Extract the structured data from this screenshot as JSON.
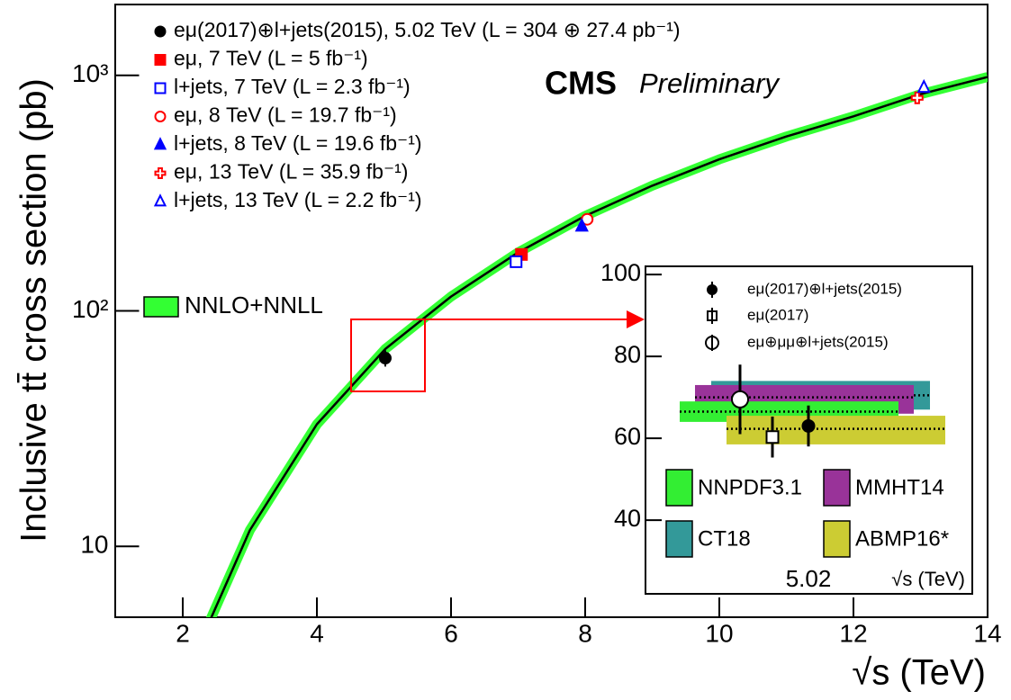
{
  "chart_data": [
    {
      "type": "scatter",
      "ylabel": "Inclusive tt̄ cross section (pb)",
      "xlabel": "√s (TeV)",
      "annotations": [
        "CMS",
        "Preliminary"
      ],
      "xlim": [
        1,
        14
      ],
      "ylim": [
        5,
        2000
      ],
      "log_y": true,
      "xticks": [
        2,
        4,
        6,
        8,
        10,
        12,
        14
      ],
      "yticks": [
        10,
        {
          "value": 100,
          "label": "10²"
        },
        {
          "value": 1000,
          "label": "10³"
        }
      ],
      "series": [
        {
          "name": "eμ(2017)⊕l+jets(2015), 5.02 TeV (L = 304 ⊕ 27.4 pb⁻¹)",
          "marker": "circle",
          "color": "#000000",
          "x": [
            5.02
          ],
          "values": [
            63.0
          ],
          "yerr": [
            5.0
          ]
        },
        {
          "name": "eμ, 7 TeV (L = 5 fb⁻¹)",
          "marker": "square",
          "color": "#ff0000",
          "x": [
            7.05
          ],
          "values": [
            173.6
          ]
        },
        {
          "name": "l+jets, 7 TeV (L = 2.3 fb⁻¹)",
          "marker": "open-square",
          "color": "#0000ff",
          "x": [
            6.97
          ],
          "values": [
            161.7
          ]
        },
        {
          "name": "eμ, 8 TeV (L = 19.7 fb⁻¹)",
          "marker": "open-circle",
          "color": "#ff0000",
          "x": [
            8.03
          ],
          "values": [
            244.9
          ]
        },
        {
          "name": "l+jets, 8 TeV (L = 19.6 fb⁻¹)",
          "marker": "triangle",
          "color": "#0000ff",
          "x": [
            7.95
          ],
          "values": [
            228.5
          ]
        },
        {
          "name": "eμ, 13 TeV (L = 35.9 fb⁻¹)",
          "marker": "open-cross",
          "color": "#ff0000",
          "x": [
            12.95
          ],
          "values": [
            803
          ]
        },
        {
          "name": "l+jets, 13 TeV (L = 2.2 fb⁻¹)",
          "marker": "open-triangle",
          "color": "#0000ff",
          "x": [
            13.05
          ],
          "values": [
            888
          ]
        }
      ],
      "theory": {
        "name": "NNLO+NNLL",
        "color": "#33ff33",
        "line_color": "#000000",
        "x": [
          2.4,
          3,
          4,
          5.02,
          6,
          7,
          8,
          9,
          10,
          11,
          12,
          13,
          14
        ],
        "values": [
          4.8,
          11.7,
          33,
          68.9,
          115,
          177,
          253,
          340,
          440,
          550,
          670,
          832,
          984
        ]
      }
    },
    {
      "type": "scatter",
      "xlabel": "√s (TeV)",
      "categories": [
        "5.02"
      ],
      "ylim": [
        22,
        102
      ],
      "yticks": [
        40,
        60,
        80,
        100
      ],
      "series": [
        {
          "name": "eμ(2017)⊕l+jets(2015)",
          "marker": "circle",
          "color": "#000000",
          "values": [
            63.0
          ],
          "yerr": [
            5.0
          ]
        },
        {
          "name": "eμ(2017)",
          "marker": "open-square",
          "color": "#000000",
          "values": [
            60.3
          ],
          "yerr": [
            5.0
          ]
        },
        {
          "name": "eμ⊕μμ⊕l+jets(2015)",
          "marker": "open-circle",
          "color": "#000000",
          "values": [
            69.5
          ],
          "yerr": [
            8.5
          ]
        }
      ],
      "bands": [
        {
          "name": "NNPDF3.1",
          "color": "#33ee33",
          "value": 66.5,
          "low": 64,
          "high": 69
        },
        {
          "name": "MMHT14",
          "color": "#993399",
          "value": 70,
          "low": 66,
          "high": 73
        },
        {
          "name": "CT18",
          "color": "#339999",
          "value": 70.5,
          "low": 67,
          "high": 74
        },
        {
          "name": "ABMP16*",
          "color": "#cccc33",
          "value": 62.3,
          "low": 58.5,
          "high": 65.5
        }
      ]
    }
  ]
}
